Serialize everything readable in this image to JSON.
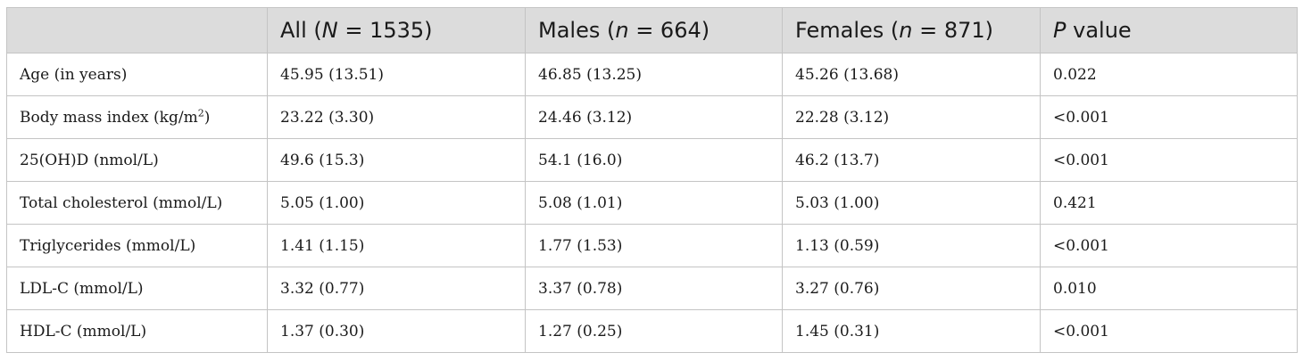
{
  "table": {
    "headers": [
      {
        "text": "",
        "italic_part": "",
        "suffix": ""
      },
      {
        "text": "All (",
        "italic_part": "N",
        "suffix": " = 1535)"
      },
      {
        "text": "Males (",
        "italic_part": "n",
        "suffix": " = 664)"
      },
      {
        "text": "Females (",
        "italic_part": "n",
        "suffix": " = 871)"
      },
      {
        "text": "",
        "italic_part": "P",
        "suffix": " value"
      }
    ],
    "rows": [
      {
        "label": "Age (in years)",
        "label_sup": "",
        "label_after": "",
        "all": "45.95 (13.51)",
        "males": "46.85 (13.25)",
        "females": "45.26 (13.68)",
        "p": "0.022"
      },
      {
        "label": "Body mass index (kg/m",
        "label_sup": "2",
        "label_after": ")",
        "all": "23.22 (3.30)",
        "males": "24.46 (3.12)",
        "females": "22.28 (3.12)",
        "p": "<0.001"
      },
      {
        "label": "25(OH)D (nmol/L)",
        "label_sup": "",
        "label_after": "",
        "all": "49.6 (15.3)",
        "males": "54.1 (16.0)",
        "females": "46.2 (13.7)",
        "p": "<0.001"
      },
      {
        "label": "Total cholesterol (mmol/L)",
        "label_sup": "",
        "label_after": "",
        "all": "5.05 (1.00)",
        "males": "5.08 (1.01)",
        "females": "5.03 (1.00)",
        "p": "0.421"
      },
      {
        "label": "Triglycerides (mmol/L)",
        "label_sup": "",
        "label_after": "",
        "all": "1.41 (1.15)",
        "males": "1.77 (1.53)",
        "females": "1.13 (0.59)",
        "p": "<0.001"
      },
      {
        "label": "LDL-C (mmol/L)",
        "label_sup": "",
        "label_after": "",
        "all": "3.32 (0.77)",
        "males": "3.37 (0.78)",
        "females": "3.27 (0.76)",
        "p": "0.010"
      },
      {
        "label": "HDL-C (mmol/L)",
        "label_sup": "",
        "label_after": "",
        "all": "1.37 (0.30)",
        "males": "1.27 (0.25)",
        "females": "1.45 (0.31)",
        "p": "<0.001"
      }
    ]
  }
}
